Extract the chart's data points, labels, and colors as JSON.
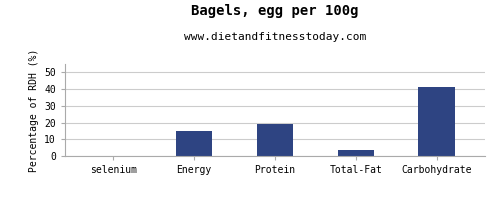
{
  "title": "Bagels, egg per 100g",
  "subtitle": "www.dietandfitnesstoday.com",
  "categories": [
    "selenium",
    "Energy",
    "Protein",
    "Total-Fat",
    "Carbohydrate"
  ],
  "values": [
    0.0,
    15.0,
    19.0,
    3.5,
    41.0
  ],
  "bar_color": "#2e4482",
  "ylabel": "Percentage of RDH (%)",
  "ylim": [
    0,
    55
  ],
  "yticks": [
    0,
    10,
    20,
    30,
    40,
    50
  ],
  "bg_color": "#ffffff",
  "title_fontsize": 10,
  "subtitle_fontsize": 8,
  "ylabel_fontsize": 7,
  "tick_fontsize": 7,
  "bar_width": 0.45
}
